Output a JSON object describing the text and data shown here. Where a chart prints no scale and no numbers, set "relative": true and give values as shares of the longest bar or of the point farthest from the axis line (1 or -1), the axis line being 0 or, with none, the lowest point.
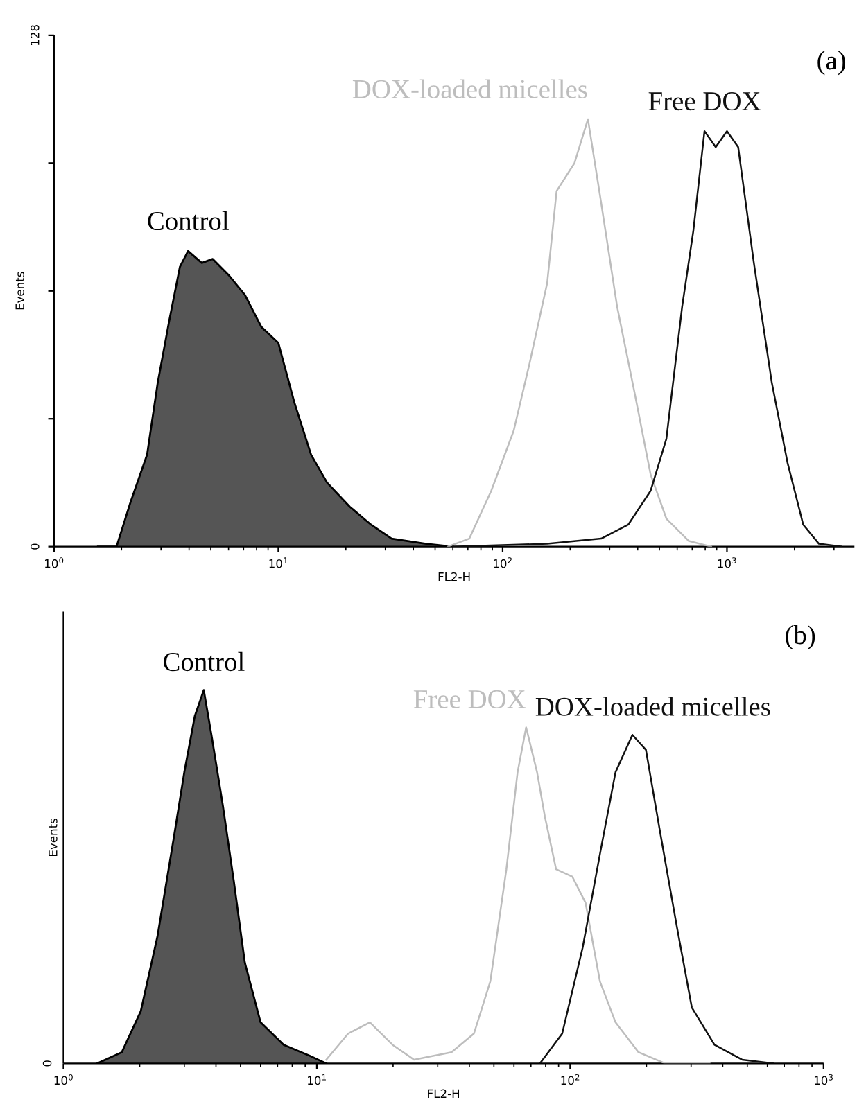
{
  "chart_data": [
    {
      "type": "line",
      "xlabel": "FL2-H",
      "ylabel": "Events",
      "annotations": [
        "(a)"
      ],
      "log": "x",
      "grid": false,
      "legend": false,
      "xlim": [
        1,
        3700
      ],
      "xticks": [
        {
          "value": 1,
          "label": "10$^{0}$"
        },
        {
          "value": 10,
          "label": "10$^{1}$"
        },
        {
          "value": 100,
          "label": "10$^{2}$"
        },
        {
          "value": 1000,
          "label": "10$^{3}$"
        }
      ],
      "ylim": [
        0,
        128
      ],
      "yticks": [
        0,
        {
          "value": 32,
          "label": null
        },
        {
          "value": 64,
          "label": null
        },
        {
          "value": 96,
          "label": null
        },
        128
      ],
      "series": [
        {
          "name": "Control",
          "type": "area",
          "color": "#555555",
          "x": [
            1.57,
            1.9,
            2.19,
            2.6,
            2.9,
            3.25,
            3.64,
            3.96,
            4.56,
            5.1,
            6.0,
            7.1,
            8.4,
            10,
            11.8,
            14,
            16.5,
            20.8,
            25.9,
            32,
            45.6,
            60
          ],
          "values": [
            0,
            0,
            11,
            23,
            41,
            56,
            70,
            74,
            71,
            72,
            68,
            63,
            55,
            51,
            36,
            23,
            16,
            10,
            5.5,
            2,
            0.7,
            0
          ]
        },
        {
          "name": "DOX-loaded micelles",
          "color": "#bdbdbd",
          "x": [
            57,
            71,
            89,
            112,
            132,
            158,
            174,
            209,
            240,
            275,
            324,
            389,
            457,
            537,
            676,
            851
          ],
          "values": [
            0,
            2,
            14,
            29,
            46,
            66,
            89,
            96,
            107,
            86,
            60,
            38,
            18,
            7,
            1.4,
            0
          ]
        },
        {
          "name": "Free DOX",
          "color": "#111111",
          "x": [
            60,
            158,
            275,
            363,
            457,
            537,
            631,
            708,
            794,
            891,
            1000,
            1122,
            1318,
            1585,
            1862,
            2188,
            2570,
            3236
          ],
          "values": [
            0,
            0.7,
            2,
            5.5,
            14,
            27,
            60,
            79,
            104,
            100,
            104,
            100,
            71,
            41,
            21,
            5.5,
            0.7,
            0
          ]
        }
      ]
    },
    {
      "type": "line",
      "relative": true,
      "xlabel": "FL2-H",
      "ylabel": "Events",
      "annotations": [
        "(b)",
        "0"
      ],
      "log": "x",
      "grid": false,
      "legend": false,
      "xlim": [
        1,
        1000
      ],
      "xticks": [
        {
          "value": 1,
          "label": "10$^{0}$"
        },
        {
          "value": 10,
          "label": "10$^{1}$"
        },
        {
          "value": 100,
          "label": "10$^{2}$"
        },
        {
          "value": 1000,
          "label": "10$^{3}$"
        }
      ],
      "series": [
        {
          "name": "Control",
          "type": "area",
          "color": "#555555",
          "x": [
            1.36,
            1.7,
            2.02,
            2.35,
            2.72,
            3.0,
            3.3,
            3.58,
            3.86,
            4.26,
            4.7,
            5.2,
            6.0,
            7.4,
            9.4,
            10.9
          ],
          "values": [
            0,
            0.03,
            0.14,
            0.34,
            0.6,
            0.78,
            0.93,
            1,
            0.87,
            0.69,
            0.49,
            0.27,
            0.11,
            0.05,
            0.02,
            0
          ]
        },
        {
          "name": "Free DOX",
          "color": "#bdbdbd",
          "x": [
            10.9,
            13.3,
            16.2,
            19.9,
            24.2,
            34,
            41.7,
            48.4,
            56,
            62,
            67,
            74,
            79.5,
            88,
            102,
            115,
            131,
            151,
            186,
            237,
            355
          ],
          "values": [
            0.01,
            0.08,
            0.11,
            0.05,
            0.01,
            0.03,
            0.08,
            0.22,
            0.52,
            0.78,
            0.9,
            0.78,
            0.66,
            0.52,
            0.5,
            0.43,
            0.22,
            0.11,
            0.03,
            0,
            0
          ]
        },
        {
          "name": "DOX-loaded micelles",
          "color": "#111111",
          "x": [
            76,
            93,
            112,
            131,
            151,
            176,
            199,
            225,
            263,
            302,
            371,
            477,
            633
          ],
          "values": [
            0,
            0.08,
            0.31,
            0.56,
            0.78,
            0.88,
            0.84,
            0.63,
            0.37,
            0.15,
            0.05,
            0.01,
            0
          ]
        }
      ]
    }
  ]
}
